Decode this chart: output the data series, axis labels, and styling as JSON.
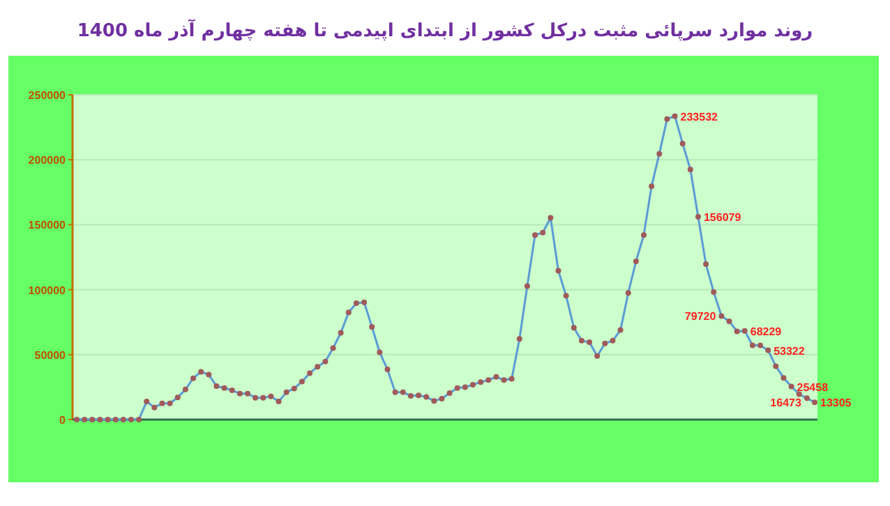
{
  "chart_data": {
    "type": "line",
    "title": "روند موارد سرپائی مثبت درکل کشور از ابتدای اپیدمی تا هفته چهارم آذر ماه 1400",
    "categories": [
      null,
      null,
      null,
      null,
      null,
      null,
      null,
      null,
      null,
      null,
      null,
      null,
      null,
      null,
      null,
      null,
      null,
      null,
      null,
      null,
      null,
      null,
      null,
      null,
      null,
      null,
      null,
      null,
      null,
      null,
      null,
      null,
      null,
      null,
      null,
      null,
      null,
      null,
      null,
      null,
      null,
      null,
      null,
      null,
      null,
      null,
      null,
      null,
      null,
      null,
      null,
      null,
      null,
      null,
      null,
      null,
      null,
      null,
      null,
      null,
      null,
      null,
      null,
      null,
      null,
      null,
      null,
      null,
      null,
      null,
      null,
      null,
      null,
      null,
      null,
      null,
      null,
      null,
      null,
      null,
      null,
      null,
      null,
      null,
      null,
      null,
      null,
      null,
      null,
      null,
      null,
      null,
      null,
      null,
      null,
      null
    ],
    "series": [
      {
        "color": "#5b9bd5",
        "values": [
          0,
          0,
          0,
          0,
          0,
          0,
          0,
          0,
          0,
          13900,
          9300,
          12500,
          12500,
          17100,
          23200,
          31800,
          36800,
          34600,
          25700,
          24300,
          22500,
          20000,
          20000,
          16800,
          16800,
          17900,
          13900,
          21100,
          23900,
          29300,
          35700,
          40700,
          44600,
          55000,
          66800,
          82500,
          89600,
          90300,
          71400,
          51800,
          38600,
          21100,
          21100,
          18200,
          18600,
          17500,
          14300,
          16100,
          20400,
          24300,
          25000,
          26800,
          28900,
          30400,
          32900,
          30400,
          31400,
          62100,
          102800,
          142100,
          143900,
          155300,
          114600,
          95300,
          70700,
          60700,
          59600,
          48900,
          58600,
          60700,
          68900,
          97500,
          121800,
          142100,
          179600,
          204600,
          231400,
          233532,
          212500,
          192500,
          156079,
          119600,
          98200,
          79720,
          75700,
          67900,
          68229,
          57100,
          57100,
          53322,
          41100,
          32100,
          25458,
          19600,
          16473,
          13305
        ],
        "value_labels": [
          null,
          null,
          null,
          null,
          null,
          null,
          null,
          null,
          null,
          null,
          null,
          null,
          null,
          null,
          null,
          null,
          null,
          null,
          null,
          null,
          null,
          null,
          null,
          null,
          null,
          null,
          null,
          null,
          null,
          null,
          null,
          null,
          null,
          null,
          null,
          null,
          null,
          null,
          null,
          null,
          null,
          null,
          null,
          null,
          null,
          null,
          null,
          null,
          null,
          null,
          null,
          null,
          null,
          null,
          null,
          null,
          null,
          null,
          null,
          null,
          null,
          null,
          null,
          null,
          null,
          null,
          null,
          null,
          null,
          null,
          null,
          null,
          null,
          null,
          null,
          null,
          null,
          "233532",
          null,
          null,
          "156079",
          null,
          null,
          "79720",
          null,
          null,
          "68229",
          null,
          null,
          "53322",
          null,
          null,
          "25458",
          null,
          "16473",
          "13305"
        ]
      }
    ],
    "ylim": [
      0,
      250000
    ],
    "yticks": [
      0,
      50000,
      100000,
      150000,
      200000,
      250000
    ],
    "grid": "y",
    "marker": "circle",
    "tick_labels": "y"
  }
}
